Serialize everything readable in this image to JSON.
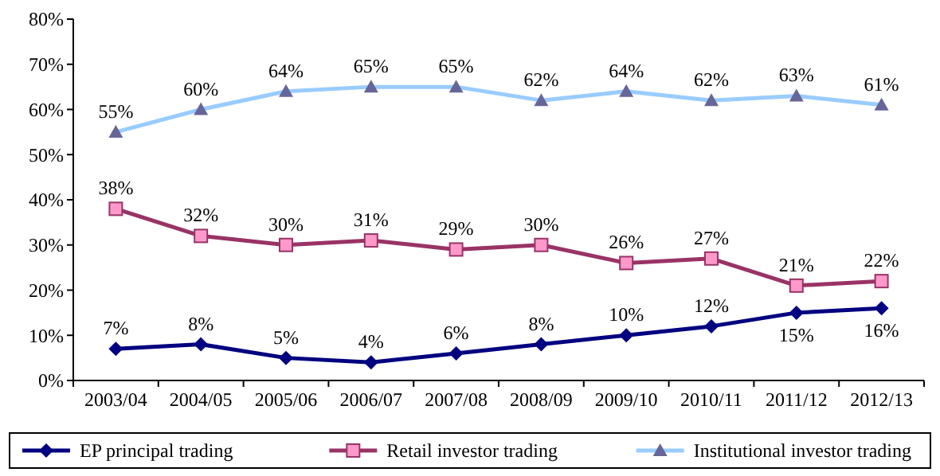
{
  "chart_data": {
    "type": "line",
    "categories": [
      "2003/04",
      "2004/05",
      "2005/06",
      "2006/07",
      "2007/08",
      "2008/09",
      "2009/10",
      "2010/11",
      "2011/12",
      "2012/13"
    ],
    "ylim": [
      0,
      80
    ],
    "yticks": [
      {
        "value": 0,
        "label": "0%"
      },
      {
        "value": 10,
        "label": "10%"
      },
      {
        "value": 20,
        "label": "20%"
      },
      {
        "value": 30,
        "label": "30%"
      },
      {
        "value": 40,
        "label": "40%"
      },
      {
        "value": 50,
        "label": "50%"
      },
      {
        "value": 60,
        "label": "60%"
      },
      {
        "value": 70,
        "label": "70%"
      },
      {
        "value": 80,
        "label": "80%"
      }
    ],
    "grid": false,
    "legend": "bottom",
    "series": [
      {
        "name": "EP principal trading",
        "color": "#000080",
        "marker": "diamond",
        "values": [
          7,
          8,
          5,
          4,
          6,
          8,
          10,
          12,
          15,
          16
        ],
        "value_labels": [
          "7%",
          "8%",
          "5%",
          "4%",
          "6%",
          "8%",
          "10%",
          "12%",
          "15%",
          "16%"
        ]
      },
      {
        "name": "Retail investor trading",
        "color": "#993366",
        "marker": "square",
        "values": [
          38,
          32,
          30,
          31,
          29,
          30,
          26,
          27,
          21,
          22
        ],
        "value_labels": [
          "38%",
          "32%",
          "30%",
          "31%",
          "29%",
          "30%",
          "26%",
          "27%",
          "21%",
          "22%"
        ]
      },
      {
        "name": "Institutional investor trading",
        "color": "#99ccff",
        "marker": "triangle",
        "values": [
          55,
          60,
          64,
          65,
          65,
          62,
          64,
          62,
          63,
          61
        ],
        "value_labels": [
          "55%",
          "60%",
          "64%",
          "65%",
          "65%",
          "62%",
          "64%",
          "62%",
          "63%",
          "61%"
        ]
      }
    ]
  }
}
